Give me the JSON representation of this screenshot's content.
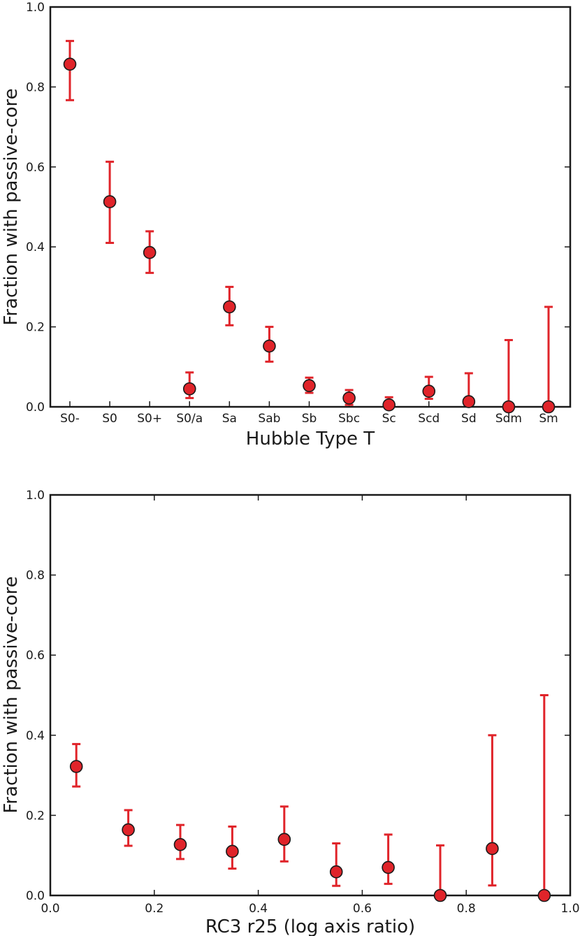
{
  "colors": {
    "marker": "#e0242a",
    "errorbar": "#e0242a",
    "axis": "#1a1a1a"
  },
  "chart_data": [
    {
      "type": "scatter",
      "title": "",
      "xlabel": "Hubble Type T",
      "ylabel": "Fraction with passive-core",
      "ylim": [
        0.0,
        1.0
      ],
      "yticks": [
        "0.0",
        "0.2",
        "0.4",
        "0.6",
        "0.8",
        "1.0"
      ],
      "categories": [
        "S0-",
        "S0",
        "S0+",
        "S0/a",
        "Sa",
        "Sab",
        "Sb",
        "Sbc",
        "Sc",
        "Scd",
        "Sd",
        "Sdm",
        "Sm"
      ],
      "values": [
        0.857,
        0.513,
        0.386,
        0.045,
        0.25,
        0.152,
        0.053,
        0.022,
        0.005,
        0.039,
        0.013,
        0.0,
        0.0
      ],
      "err_low": [
        0.767,
        0.41,
        0.335,
        0.022,
        0.204,
        0.113,
        0.035,
        0.005,
        0.0,
        0.02,
        0.0,
        0.0,
        0.0
      ],
      "err_high": [
        0.915,
        0.613,
        0.439,
        0.086,
        0.3,
        0.2,
        0.073,
        0.042,
        0.024,
        0.075,
        0.084,
        0.167,
        0.25
      ],
      "grid": false,
      "legend": "none"
    },
    {
      "type": "scatter",
      "title": "",
      "xlabel": "RC3 r25 (log axis ratio)",
      "ylabel": "Fraction with passive-core",
      "xlim": [
        0.0,
        1.0
      ],
      "ylim": [
        0.0,
        1.0
      ],
      "xticks": [
        "0.0",
        "0.2",
        "0.4",
        "0.6",
        "0.8",
        "1.0"
      ],
      "yticks": [
        "0.0",
        "0.2",
        "0.4",
        "0.6",
        "0.8",
        "1.0"
      ],
      "x": [
        0.05,
        0.15,
        0.25,
        0.35,
        0.45,
        0.55,
        0.65,
        0.75,
        0.85,
        0.95
      ],
      "values": [
        0.322,
        0.164,
        0.127,
        0.11,
        0.14,
        0.059,
        0.07,
        0.0,
        0.117,
        0.0
      ],
      "err_low": [
        0.272,
        0.124,
        0.091,
        0.067,
        0.085,
        0.024,
        0.029,
        0.0,
        0.025,
        0.0
      ],
      "err_high": [
        0.378,
        0.213,
        0.176,
        0.172,
        0.222,
        0.13,
        0.152,
        0.125,
        0.4,
        0.5
      ],
      "grid": false,
      "legend": "none"
    }
  ]
}
